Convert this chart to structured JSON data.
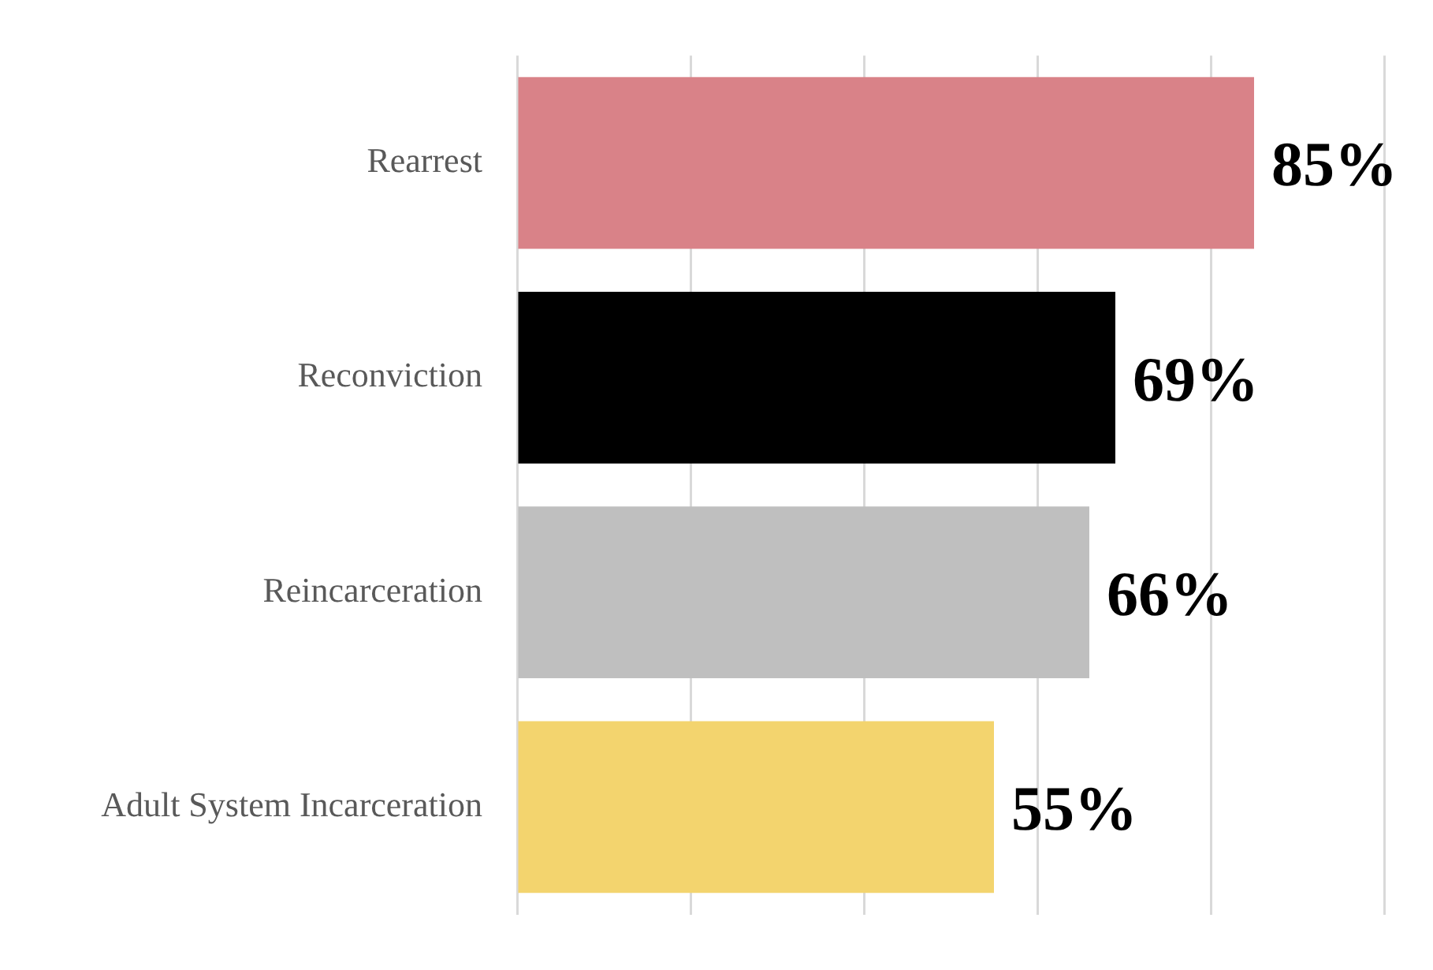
{
  "chart_data": {
    "type": "bar",
    "orientation": "horizontal",
    "categories": [
      "Rearrest",
      "Reconviction",
      "Reincarceration",
      "Adult System Incarceration"
    ],
    "values": [
      85,
      69,
      66,
      55
    ],
    "colors": [
      "#d98288",
      "#000000",
      "#bfbfbf",
      "#f3d46e"
    ],
    "xlim": [
      0,
      100
    ],
    "xticks": [
      {
        "value": 0,
        "label": null
      },
      {
        "value": 20,
        "label": null
      },
      {
        "value": 40,
        "label": null
      },
      {
        "value": 60,
        "label": null
      },
      {
        "value": 80,
        "label": null
      },
      {
        "value": 100,
        "label": null
      }
    ],
    "tick_labels": "y",
    "grid": "x",
    "legend": false,
    "value_labels": [
      "85%",
      "69%",
      "66%",
      "55%"
    ]
  }
}
